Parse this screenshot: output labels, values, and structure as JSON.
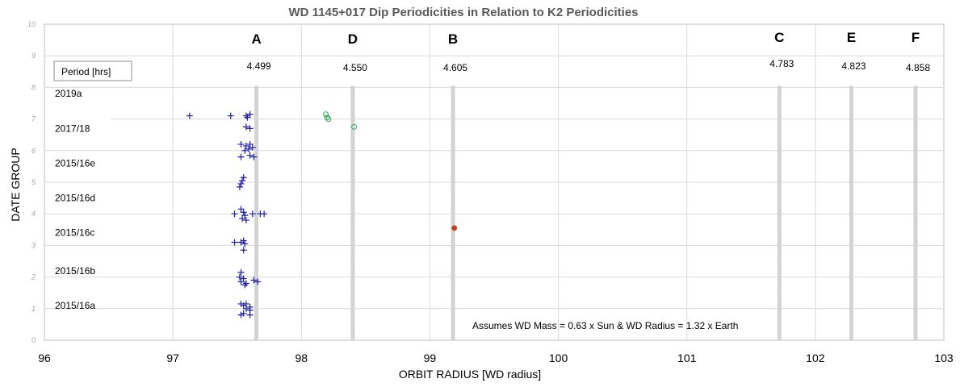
{
  "chart_data": {
    "type": "scatter",
    "title": "WD 1145+017 Dip Periodicities in Relation to K2 Periodicities",
    "xlabel": "ORBIT RADIUS [WD radius]",
    "ylabel": "DATE GROUP",
    "xlim": [
      96,
      103
    ],
    "ylim": [
      0,
      10
    ],
    "x_ticks": [
      "96",
      "97",
      "98",
      "99",
      "100",
      "101",
      "102",
      "103"
    ],
    "y_ticks": [
      "0",
      "1",
      "2",
      "3",
      "4",
      "5",
      "6",
      "7",
      "8",
      "9",
      "10"
    ],
    "grid": true,
    "period_box_label": "Period [hrs]",
    "date_groups": [
      {
        "label": "2019a",
        "y": 7.8
      },
      {
        "label": "2017/18",
        "y": 6.7
      },
      {
        "label": "2015/16e",
        "y": 5.6
      },
      {
        "label": "2015/16d",
        "y": 4.5
      },
      {
        "label": "2015/16c",
        "y": 3.4
      },
      {
        "label": "2015/16b",
        "y": 2.2
      },
      {
        "label": "2015/16a",
        "y": 1.1
      }
    ],
    "periods": [
      {
        "letter": "A",
        "period": "4.499",
        "x": 97.65
      },
      {
        "letter": "D",
        "period": "4.550",
        "x": 98.4
      },
      {
        "letter": "B",
        "period": "4.605",
        "x": 99.18
      },
      {
        "letter": "C",
        "period": "4.783",
        "x": 101.72
      },
      {
        "letter": "E",
        "period": "4.823",
        "x": 102.28
      },
      {
        "letter": "F",
        "period": "4.858",
        "x": 102.78
      }
    ],
    "series": [
      {
        "marker": "plus",
        "color": "#1f1f9e",
        "points": [
          [
            97.13,
            7.1
          ],
          [
            97.45,
            7.1
          ],
          [
            97.57,
            7.1
          ],
          [
            97.6,
            7.15
          ],
          [
            97.58,
            7.05
          ],
          [
            97.57,
            6.75
          ],
          [
            97.6,
            6.7
          ],
          [
            97.53,
            6.2
          ],
          [
            97.57,
            6.15
          ],
          [
            97.6,
            6.2
          ],
          [
            97.59,
            6.05
          ],
          [
            97.62,
            6.1
          ],
          [
            97.56,
            6.0
          ],
          [
            97.6,
            5.85
          ],
          [
            97.63,
            5.8
          ],
          [
            97.53,
            5.8
          ],
          [
            97.55,
            5.15
          ],
          [
            97.54,
            5.05
          ],
          [
            97.53,
            4.95
          ],
          [
            97.52,
            4.85
          ],
          [
            97.53,
            4.15
          ],
          [
            97.48,
            4.0
          ],
          [
            97.55,
            4.05
          ],
          [
            97.56,
            3.95
          ],
          [
            97.62,
            4.0
          ],
          [
            97.68,
            4.0
          ],
          [
            97.71,
            4.0
          ],
          [
            97.54,
            3.85
          ],
          [
            97.57,
            3.8
          ],
          [
            97.48,
            3.1
          ],
          [
            97.55,
            3.15
          ],
          [
            97.56,
            3.05
          ],
          [
            97.53,
            3.1
          ],
          [
            97.55,
            2.85
          ],
          [
            97.53,
            2.15
          ],
          [
            97.52,
            2.0
          ],
          [
            97.55,
            1.95
          ],
          [
            97.53,
            1.85
          ],
          [
            97.57,
            1.8
          ],
          [
            97.63,
            1.9
          ],
          [
            97.66,
            1.85
          ],
          [
            97.56,
            1.75
          ],
          [
            97.53,
            1.15
          ],
          [
            97.55,
            1.1
          ],
          [
            97.57,
            1.15
          ],
          [
            97.6,
            1.05
          ],
          [
            97.57,
            1.0
          ],
          [
            97.6,
            0.95
          ],
          [
            97.55,
            0.85
          ],
          [
            97.53,
            0.8
          ],
          [
            97.6,
            0.8
          ]
        ]
      },
      {
        "marker": "open-circle",
        "color": "#2eaa5a",
        "points": [
          [
            98.19,
            7.15
          ],
          [
            98.2,
            7.05
          ],
          [
            98.21,
            7.0
          ],
          [
            98.41,
            6.75
          ]
        ]
      },
      {
        "marker": "filled-circle",
        "color": "#c0392b",
        "points": [
          [
            99.19,
            3.55
          ]
        ]
      }
    ],
    "annotation": "Assumes WD Mass = 0.63 x Sun & WD Radius  = 1.32 x Earth"
  }
}
